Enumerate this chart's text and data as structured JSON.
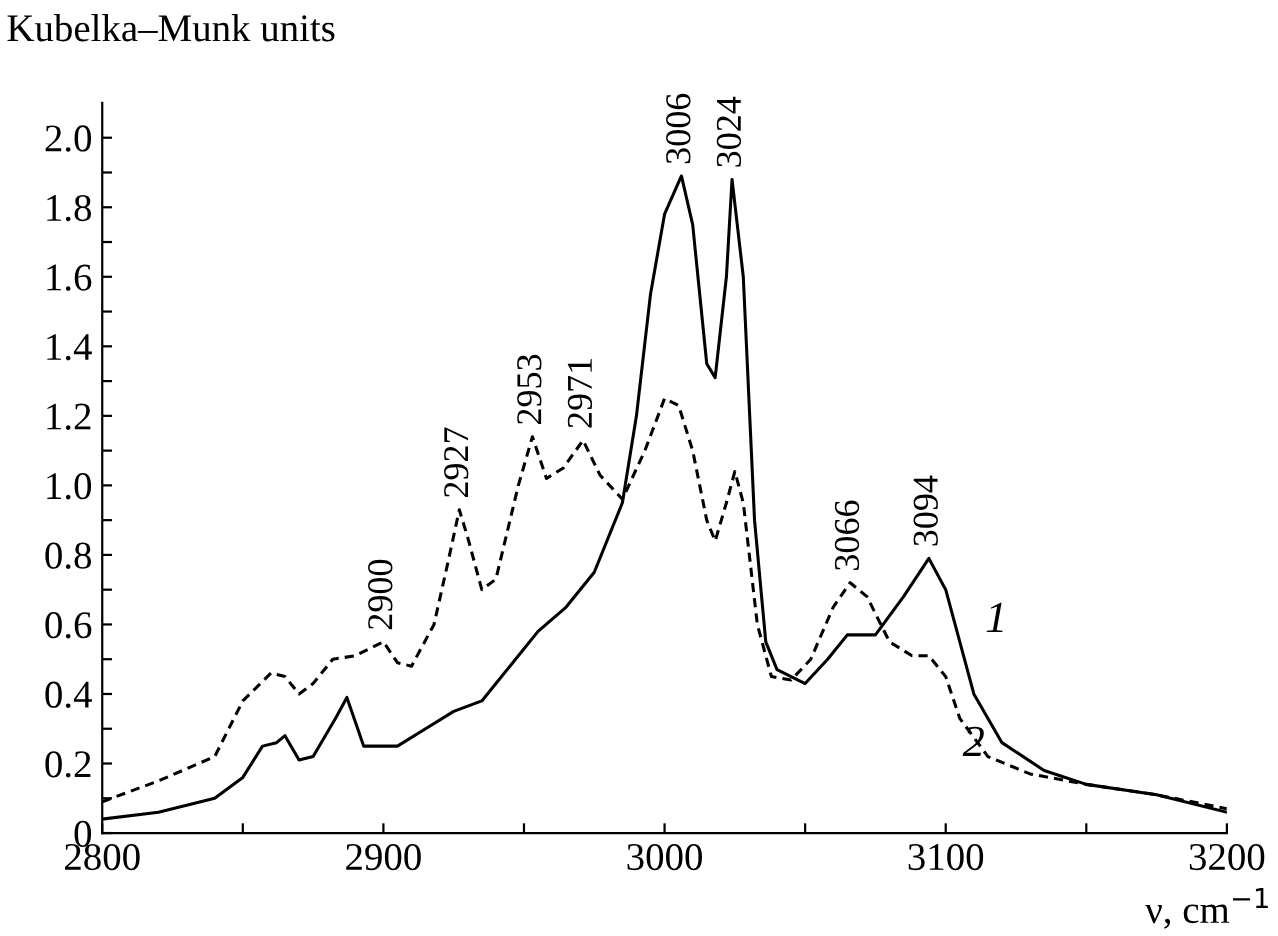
{
  "chart_data": {
    "type": "line",
    "xlabel": "ν, cm$^{−1}$",
    "ylabel": "Kubelka–Munk units",
    "xlim": [
      2800,
      3200
    ],
    "ylim": [
      0,
      2.1
    ],
    "xticks": [
      2800,
      {
        "value": 2850,
        "label": null
      },
      2900,
      {
        "value": 2950,
        "label": null
      },
      3000,
      {
        "value": 3050,
        "label": null
      },
      3100,
      {
        "value": 3150,
        "label": null
      },
      3200
    ],
    "yticks": [
      0,
      {
        "value": 0.1,
        "label": null
      },
      {
        "value": 0.2,
        "label": "0.2"
      },
      {
        "value": 0.3,
        "label": null
      },
      {
        "value": 0.4,
        "label": "0.4"
      },
      {
        "value": 0.5,
        "label": null
      },
      {
        "value": 0.6,
        "label": "0.6"
      },
      {
        "value": 0.7,
        "label": null
      },
      {
        "value": 0.8,
        "label": "0.8"
      },
      {
        "value": 0.9,
        "label": null
      },
      {
        "value": 1.0,
        "label": "1.0"
      },
      {
        "value": 1.1,
        "label": null
      },
      {
        "value": 1.2,
        "label": "1.2"
      },
      {
        "value": 1.3,
        "label": null
      },
      {
        "value": 1.4,
        "label": "1.4"
      },
      {
        "value": 1.5,
        "label": null
      },
      {
        "value": 1.6,
        "label": "1.6"
      },
      {
        "value": 1.7,
        "label": null
      },
      {
        "value": 1.8,
        "label": "1.8"
      },
      {
        "value": 1.9,
        "label": null
      },
      {
        "value": 2.0,
        "label": "2.0"
      }
    ],
    "grid": false,
    "legend": false,
    "marker": "none",
    "series": [
      {
        "color": "#000000",
        "line_style": "solid",
        "x": [
          2800,
          2820,
          2840,
          2850,
          2857,
          2862,
          2865,
          2870,
          2875,
          2883,
          2887,
          2890,
          2893,
          2905,
          2915,
          2925,
          2935,
          2945,
          2955,
          2965,
          2975,
          2985,
          2990,
          2995,
          3000,
          3006,
          3010,
          3015,
          3018,
          3022,
          3024,
          3028,
          3032,
          3036,
          3040,
          3050,
          3058,
          3065,
          3075,
          3085,
          3094,
          3100,
          3110,
          3120,
          3135,
          3150,
          3175,
          3200
        ],
        "values": [
          0.04,
          0.06,
          0.1,
          0.16,
          0.25,
          0.26,
          0.28,
          0.21,
          0.22,
          0.33,
          0.39,
          0.32,
          0.25,
          0.25,
          0.3,
          0.35,
          0.38,
          0.48,
          0.58,
          0.65,
          0.75,
          0.95,
          1.2,
          1.55,
          1.78,
          1.89,
          1.75,
          1.35,
          1.31,
          1.6,
          1.88,
          1.6,
          0.9,
          0.55,
          0.47,
          0.43,
          0.5,
          0.57,
          0.57,
          0.68,
          0.79,
          0.7,
          0.4,
          0.26,
          0.18,
          0.14,
          0.11,
          0.06
        ]
      },
      {
        "color": "#000000",
        "line_style": "dashed",
        "x": [
          2800,
          2820,
          2840,
          2850,
          2860,
          2865,
          2870,
          2875,
          2882,
          2890,
          2895,
          2900,
          2905,
          2910,
          2918,
          2923,
          2927,
          2930,
          2935,
          2940,
          2948,
          2953,
          2958,
          2964,
          2971,
          2977,
          2985,
          2993,
          3000,
          3005,
          3010,
          3015,
          3018,
          3022,
          3025,
          3028,
          3033,
          3038,
          3045,
          3052,
          3060,
          3066,
          3072,
          3080,
          3088,
          3094,
          3100,
          3105,
          3115,
          3130,
          3150,
          3175,
          3200
        ],
        "values": [
          0.09,
          0.15,
          0.22,
          0.38,
          0.46,
          0.45,
          0.4,
          0.43,
          0.5,
          0.51,
          0.53,
          0.55,
          0.49,
          0.48,
          0.6,
          0.78,
          0.93,
          0.85,
          0.7,
          0.73,
          1.0,
          1.14,
          1.02,
          1.05,
          1.13,
          1.03,
          0.96,
          1.1,
          1.25,
          1.23,
          1.1,
          0.9,
          0.84,
          0.95,
          1.04,
          0.95,
          0.6,
          0.45,
          0.44,
          0.5,
          0.65,
          0.72,
          0.68,
          0.55,
          0.51,
          0.51,
          0.45,
          0.33,
          0.22,
          0.17,
          0.14,
          0.11,
          0.07
        ]
      }
    ],
    "annotations": [
      {
        "text": "2900",
        "x": 2900,
        "y": 0.55
      },
      {
        "text": "2927",
        "x": 2927,
        "y": 0.93
      },
      {
        "text": "2953",
        "x": 2953,
        "y": 1.14
      },
      {
        "text": "2971",
        "x": 2971,
        "y": 1.13
      },
      {
        "text": "3006",
        "x": 3006,
        "y": 1.89
      },
      {
        "text": "3024",
        "x": 3024,
        "y": 1.88
      },
      {
        "text": "3066",
        "x": 3066,
        "y": 0.72
      },
      {
        "text": "3094",
        "x": 3094,
        "y": 0.79
      },
      "1",
      "2"
    ]
  }
}
